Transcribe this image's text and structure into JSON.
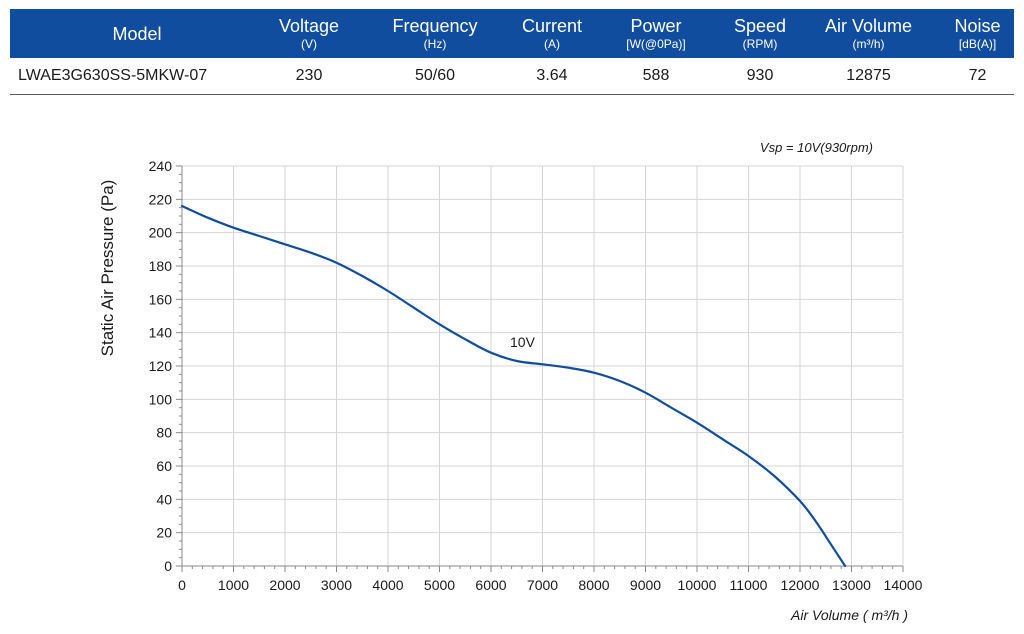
{
  "table": {
    "columns": [
      {
        "label": "Model",
        "unit": ""
      },
      {
        "label": "Voltage",
        "unit": "(V)"
      },
      {
        "label": "Frequency",
        "unit": "(Hz)"
      },
      {
        "label": "Current",
        "unit": "(A)"
      },
      {
        "label": "Power",
        "unit": "[W(@0Pa)]"
      },
      {
        "label": "Speed",
        "unit": "(RPM)"
      },
      {
        "label": "Air Volume",
        "unit": "(m³/h)"
      },
      {
        "label": "Noise",
        "unit": "[dB(A)]"
      }
    ],
    "row": [
      "LWAE3G630SS-5MKW-07",
      "230",
      "50/60",
      "3.64",
      "588",
      "930",
      "12875",
      "72"
    ]
  },
  "colors": {
    "header_bg": "#114d9e",
    "curve": "#114d9e",
    "grid": "#d4d4d4"
  },
  "chart_data": {
    "type": "line",
    "annotation": "Vsp = 10V(930rpm)",
    "xlabel": "Air Volume ( m³/h )",
    "ylabel": "Static Air Pressure  (Pa)",
    "xlim": [
      0,
      14000
    ],
    "ylim": [
      0,
      240
    ],
    "xticks": [
      0,
      1000,
      2000,
      3000,
      4000,
      5000,
      6000,
      7000,
      8000,
      9000,
      10000,
      11000,
      12000,
      13000,
      14000
    ],
    "yticks": [
      0,
      20,
      40,
      60,
      80,
      100,
      120,
      140,
      160,
      180,
      200,
      220,
      240
    ],
    "grid": true,
    "series": [
      {
        "name": "10V",
        "x": [
          0,
          500,
          1000,
          1500,
          2000,
          2500,
          3000,
          3500,
          4000,
          4500,
          5000,
          5500,
          6000,
          6500,
          7000,
          7500,
          8000,
          8500,
          9000,
          9500,
          10000,
          10500,
          11000,
          11500,
          12000,
          12300,
          12600,
          12875
        ],
        "y": [
          216,
          209,
          203,
          198,
          193,
          188,
          182,
          174,
          165,
          155,
          145,
          136,
          128,
          123,
          121,
          119,
          116,
          111,
          104,
          95,
          86,
          76,
          66,
          54,
          39,
          27,
          13,
          0
        ]
      }
    ]
  }
}
